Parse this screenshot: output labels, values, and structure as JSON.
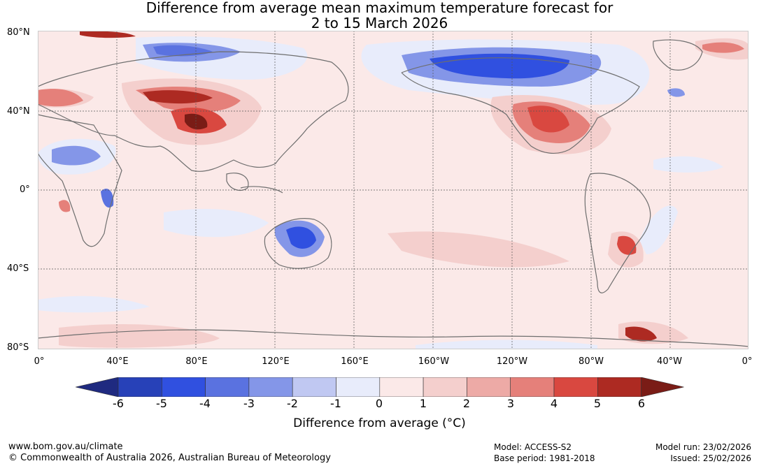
{
  "title_line1": "Difference from average mean maximum temperature forecast for",
  "title_line2": "2 to 15 March 2026",
  "map": {
    "lat_labels": [
      "80°N",
      "40°N",
      "0°",
      "40°S",
      "80°S"
    ],
    "lon_labels": [
      "0°",
      "40°E",
      "80°E",
      "120°E",
      "160°E",
      "160°W",
      "120°W",
      "80°W",
      "40°W",
      "0°"
    ]
  },
  "colorbar": {
    "label": "Difference from average (°C)",
    "ticks": [
      "-6",
      "-5",
      "-4",
      "-3",
      "-2",
      "-1",
      "0",
      "1",
      "2",
      "3",
      "4",
      "5",
      "6"
    ],
    "colors": [
      "#1f2a80",
      "#2741b8",
      "#3050e0",
      "#5a72e0",
      "#8496e8",
      "#c0c8f2",
      "#e8ecfb",
      "#fbe9e8",
      "#f4cfcd",
      "#edaaa6",
      "#e5807a",
      "#d94840",
      "#ad2a22",
      "#7a1c16"
    ]
  },
  "footer": {
    "site": "www.bom.gov.au/climate",
    "copyright": "© Commonwealth of Australia 2026, Australian Bureau of Meteorology",
    "model": "Model: ACCESS-S2",
    "base_period": "Base period: 1981-2018",
    "model_run": "Model run: 23/02/2026",
    "issued": "Issued: 25/02/2026"
  }
}
